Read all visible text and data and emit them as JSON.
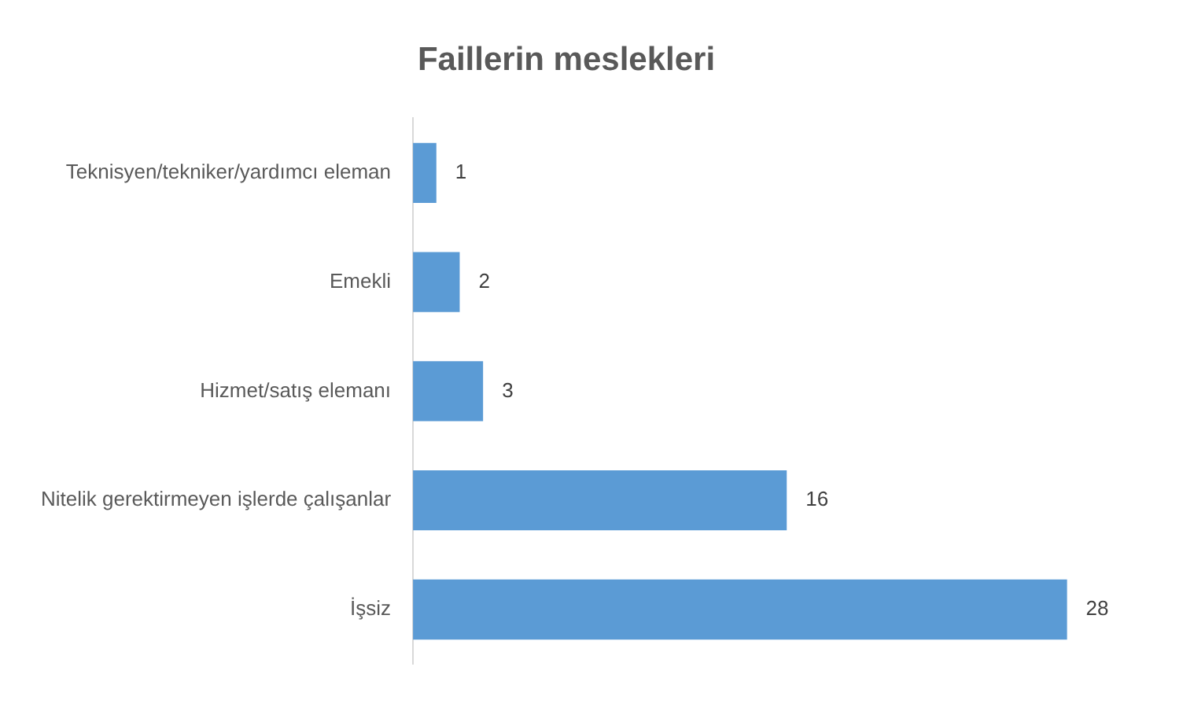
{
  "chart_data": {
    "type": "bar",
    "orientation": "horizontal",
    "title": "Faillerin meslekleri",
    "categories": [
      "Teknisyen/tekniker/yardımcı eleman",
      "Emekli",
      "Hizmet/satış elemanı",
      "Nitelik gerektirmeyen işlerde çalışanlar",
      "İşsiz"
    ],
    "values": [
      1,
      2,
      3,
      16,
      28
    ],
    "color": "#5b9bd5",
    "data_labels": true,
    "legend": false
  }
}
